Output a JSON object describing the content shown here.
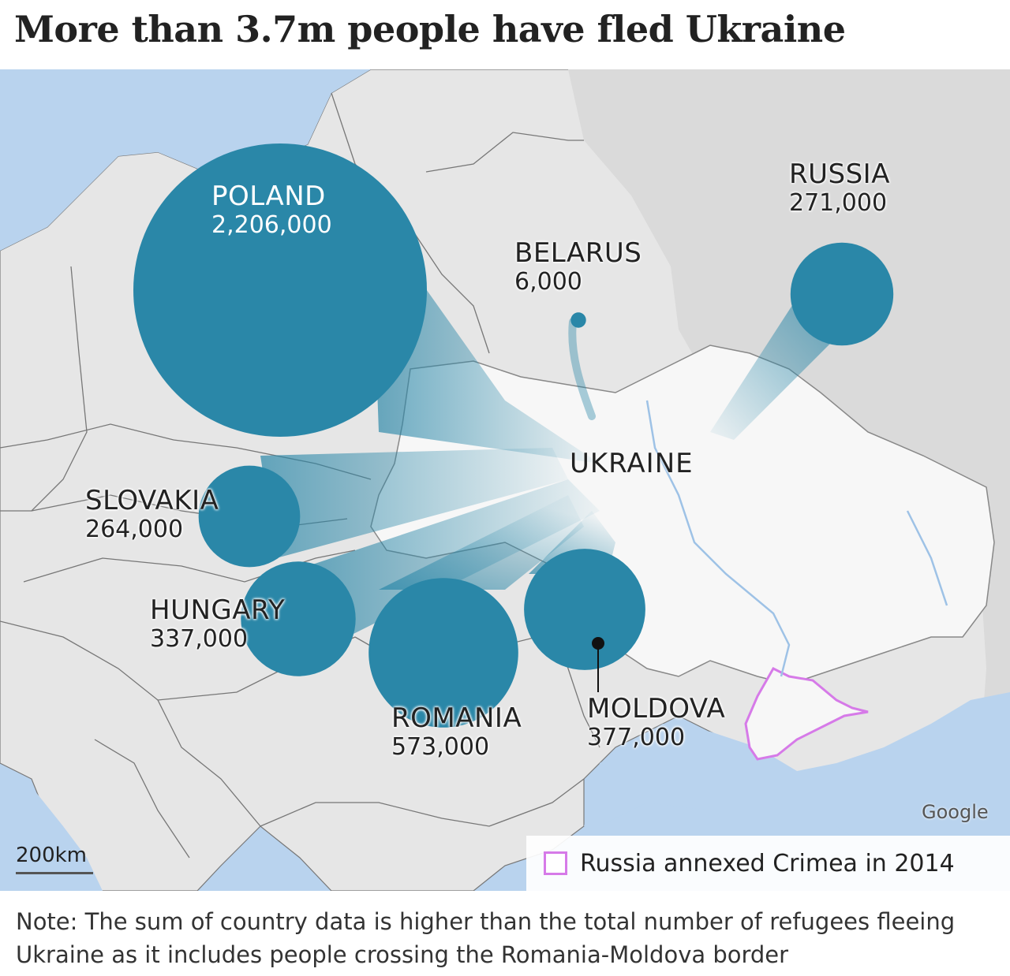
{
  "title": "More than 3.7m people have fled Ukraine",
  "countries": [
    {
      "name": "POLAND",
      "value": "2,206,000",
      "refugees": 2206000
    },
    {
      "name": "SLOVAKIA",
      "value": "264,000",
      "refugees": 264000
    },
    {
      "name": "HUNGARY",
      "value": "337,000",
      "refugees": 337000
    },
    {
      "name": "ROMANIA",
      "value": "573,000",
      "refugees": 573000
    },
    {
      "name": "MOLDOVA",
      "value": "377,000",
      "refugees": 377000
    },
    {
      "name": "BELARUS",
      "value": "6,000",
      "refugees": 6000
    },
    {
      "name": "RUSSIA",
      "value": "271,000",
      "refugees": 271000
    }
  ],
  "ukraine_label": "UKRAINE",
  "attribution": "Google",
  "scale_label": "200km",
  "legend": {
    "text": "Russia annexed Crimea in 2014",
    "color": "#d67ae8"
  },
  "note": "Note: The sum of country data is higher than the total number of refugees fleeing Ukraine as it includes people crossing the Romania-Moldova border",
  "colors": {
    "bubble": "#2a87a8",
    "sea": "#b9d3ee",
    "land": "#e6e6e6",
    "ukraine": "#f7f7f7"
  }
}
